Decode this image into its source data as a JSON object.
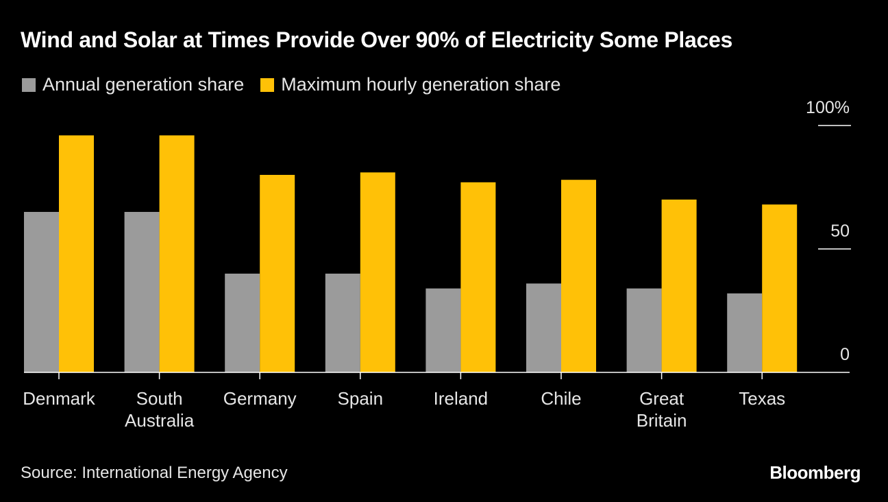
{
  "title": "Wind and Solar at Times Provide Over 90% of Electricity Some Places",
  "legend": [
    {
      "label": "Annual generation share",
      "color": "#9b9b9b"
    },
    {
      "label": "Maximum hourly generation share",
      "color": "#ffc107"
    }
  ],
  "source": "Source: International Energy Agency",
  "brand": "Bloomberg",
  "chart_data": {
    "type": "bar",
    "categories": [
      [
        "Denmark"
      ],
      [
        "South",
        "Australia"
      ],
      [
        "Germany"
      ],
      [
        "Spain"
      ],
      [
        "Ireland"
      ],
      [
        "Chile"
      ],
      [
        "Great",
        "Britain"
      ],
      [
        "Texas"
      ]
    ],
    "series": [
      {
        "name": "Annual generation share",
        "color": "#9b9b9b",
        "values": [
          65,
          65,
          40,
          40,
          34,
          36,
          34,
          32
        ]
      },
      {
        "name": "Maximum hourly generation share",
        "color": "#ffc107",
        "values": [
          96,
          96,
          80,
          81,
          77,
          78,
          70,
          68
        ]
      }
    ],
    "yticks": [
      {
        "value": 0,
        "label": "0"
      },
      {
        "value": 50,
        "label": "50"
      },
      {
        "value": 100,
        "label": "100%"
      }
    ],
    "ylim": [
      0,
      100
    ],
    "legend_position": "top-left",
    "grid": false
  }
}
